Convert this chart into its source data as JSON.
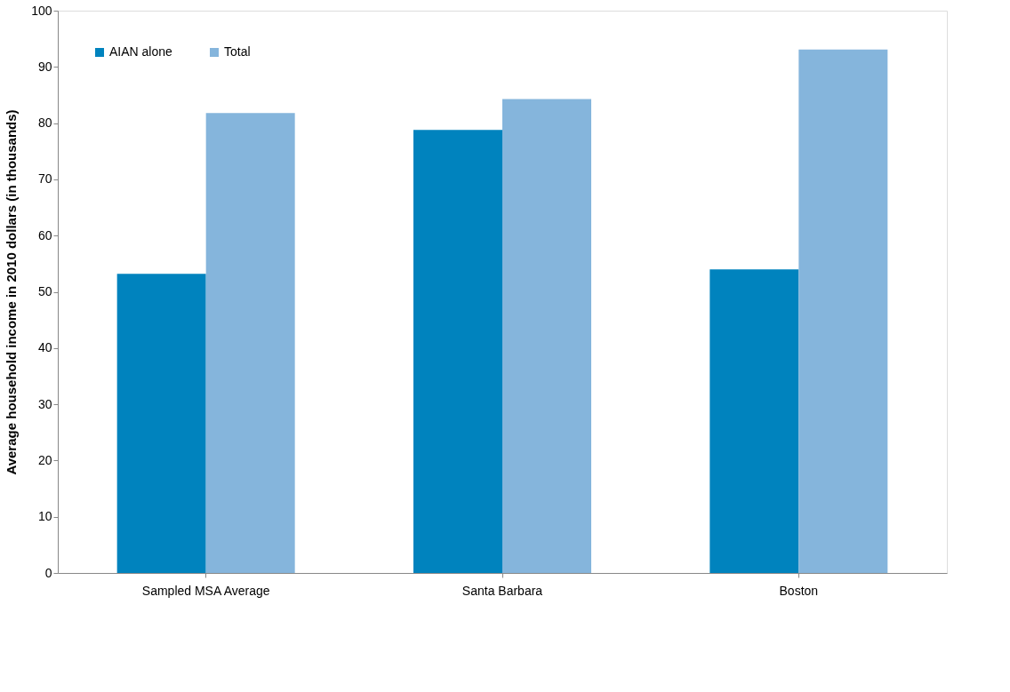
{
  "chart_data": {
    "type": "bar",
    "ylabel": "Average household income in 2010 dollars (in thousands)",
    "categories": [
      "Sampled MSA Average",
      "Santa Barbara",
      "Boston"
    ],
    "series": [
      {
        "name": "AIAN alone",
        "color": "#0083be",
        "values": [
          53.2,
          78.8,
          54.0
        ]
      },
      {
        "name": "Total",
        "color": "#85b5dc",
        "values": [
          81.8,
          84.3,
          93.1
        ]
      }
    ],
    "ylim": [
      0,
      100
    ],
    "yticks": [
      0,
      10,
      20,
      30,
      40,
      50,
      60,
      70,
      80,
      90,
      100
    ],
    "grid": false,
    "legend": "top left"
  }
}
